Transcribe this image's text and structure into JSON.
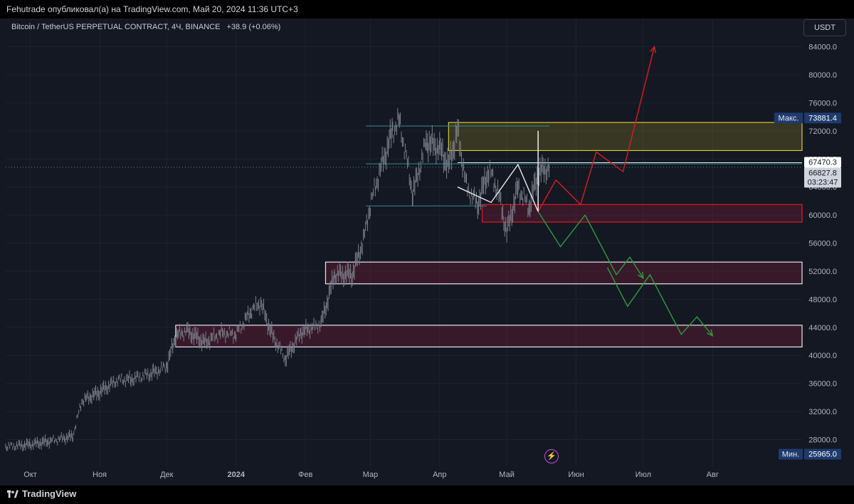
{
  "header": {
    "published": "Fehutrade опубликовал(а) на TradingView.com, Май 20, 2024 11:36 UTC+3"
  },
  "legend": {
    "symbol": "Bitcoin / TetherUS PERPETUAL CONTRACT, 4Ч, BINANCE",
    "change": "+38.9 (+0.06%)"
  },
  "currency_button": "USDT",
  "brand": {
    "name": "TradingView"
  },
  "colors": {
    "background": "#141823",
    "candles": "#7b7f8a",
    "red_path": "#e0191e",
    "green_path": "#2a9e3c",
    "yellow_zone": "#d8c72e",
    "teal_line": "#2f8f8a"
  },
  "chart_data": {
    "type": "line",
    "title": "",
    "xlabel": "",
    "ylabel": "",
    "ylim": [
      24500,
      87000
    ],
    "y_ticks": [
      28000,
      32000,
      36000,
      40000,
      44000,
      48000,
      52000,
      56000,
      60000,
      64000,
      68000,
      72000,
      76000,
      80000,
      84000
    ],
    "y_tick_labels": [
      "28000.0",
      "32000.0",
      "36000.0",
      "40000.0",
      "44000.0",
      "48000.0",
      "52000.0",
      "56000.0",
      "60000.0",
      "64000.0",
      "68000.0",
      "72000.0",
      "76000.0",
      "80000.0",
      "84000.0"
    ],
    "x_ticks": [
      "2023-10-01",
      "2023-11-01",
      "2023-12-01",
      "2024-01-01",
      "2024-02-01",
      "2024-03-01",
      "2024-04-01",
      "2024-05-01",
      "2024-06-01",
      "2024-07-01",
      "2024-08-01"
    ],
    "x_tick_labels": [
      "Окт",
      "Ноя",
      "Дек",
      "2024",
      "Фев",
      "Мар",
      "Апр",
      "Май",
      "Июн",
      "Июл",
      "Авг"
    ],
    "xlim": [
      "2023-09-20",
      "2024-09-10"
    ],
    "series": [
      {
        "values": [
          [
            "2023-09-20",
            27000
          ],
          [
            "2023-10-01",
            27300
          ],
          [
            "2023-10-10",
            27800
          ],
          [
            "2023-10-20",
            28500
          ],
          [
            "2023-10-24",
            33500
          ],
          [
            "2023-11-01",
            34800
          ],
          [
            "2023-11-09",
            36500
          ],
          [
            "2023-11-15",
            36600
          ],
          [
            "2023-11-25",
            37500
          ],
          [
            "2023-12-01",
            38500
          ],
          [
            "2023-12-05",
            42800
          ],
          [
            "2023-12-10",
            43500
          ],
          [
            "2023-12-18",
            41800
          ],
          [
            "2023-12-25",
            43200
          ],
          [
            "2024-01-01",
            43000
          ],
          [
            "2024-01-08",
            46500
          ],
          [
            "2024-01-12",
            47500
          ],
          [
            "2024-01-17",
            43000
          ],
          [
            "2024-01-23",
            39500
          ],
          [
            "2024-01-30",
            43300
          ],
          [
            "2024-02-08",
            44500
          ],
          [
            "2024-02-14",
            51500
          ],
          [
            "2024-02-22",
            51500
          ],
          [
            "2024-02-27",
            56500
          ],
          [
            "2024-03-01",
            61500
          ],
          [
            "2024-03-05",
            66000
          ],
          [
            "2024-03-11",
            72000
          ],
          [
            "2024-03-14",
            73500
          ],
          [
            "2024-03-20",
            63000
          ],
          [
            "2024-03-26",
            70500
          ],
          [
            "2024-04-01",
            69500
          ],
          [
            "2024-04-05",
            67000
          ],
          [
            "2024-04-09",
            72000
          ],
          [
            "2024-04-13",
            64000
          ],
          [
            "2024-04-18",
            61500
          ],
          [
            "2024-04-23",
            66500
          ],
          [
            "2024-04-27",
            63500
          ],
          [
            "2024-05-01",
            57500
          ],
          [
            "2024-05-06",
            64000
          ],
          [
            "2024-05-11",
            61000
          ],
          [
            "2024-05-15",
            66000
          ],
          [
            "2024-05-20",
            66827.8
          ]
        ]
      }
    ],
    "zones": [
      {
        "label": "resistance",
        "color": "#d8c72e",
        "from": "2024-04-05",
        "to": "2024-09-10",
        "low": 69200,
        "high": 73200
      },
      {
        "label": "supply-red",
        "color": "#e0191e",
        "from": "2024-04-20",
        "to": "2024-09-10",
        "low": 59000,
        "high": 61500
      },
      {
        "label": "zone-52k",
        "color": "#e8e8e8",
        "from": "2024-02-10",
        "to": "2024-09-10",
        "low": 50200,
        "high": 53300
      },
      {
        "label": "zone-43k",
        "color": "#e8e8e8",
        "from": "2023-12-05",
        "to": "2024-09-10",
        "low": 41200,
        "high": 44300
      }
    ],
    "hlines": [
      {
        "price": 72700,
        "from": "2024-02-28",
        "to": "2024-05-20",
        "color": "#2f8f8a"
      },
      {
        "price": 67300,
        "from": "2024-02-28",
        "to": "2024-09-10",
        "color": "#2f8f8a"
      },
      {
        "price": 61300,
        "from": "2024-02-28",
        "to": "2024-04-22",
        "color": "#2f8f8a"
      },
      {
        "price": 67470.3,
        "from": "2024-04-09",
        "to": "2024-09-10",
        "color": "#e8e8e8"
      },
      {
        "price": 66827.8,
        "from": "2023-09-20",
        "to": "2024-09-10",
        "color": "#2f8f8a",
        "dotted": true
      }
    ],
    "projections": [
      {
        "name": "bull",
        "color": "#e0191e",
        "points": [
          [
            "2024-05-15",
            60500
          ],
          [
            "2024-05-23",
            65000
          ],
          [
            "2024-06-03",
            61500
          ],
          [
            "2024-06-10",
            69000
          ],
          [
            "2024-06-22",
            66200
          ],
          [
            "2024-07-06",
            84000
          ]
        ]
      },
      {
        "name": "bear",
        "color": "#2a9e3c",
        "points": [
          [
            "2024-05-15",
            60500
          ],
          [
            "2024-05-25",
            55500
          ],
          [
            "2024-06-05",
            60000
          ],
          [
            "2024-06-19",
            51500
          ],
          [
            "2024-06-25",
            54000
          ],
          [
            "2024-07-01",
            51000
          ]
        ]
      },
      {
        "name": "bear2",
        "color": "#2a9e3c",
        "points": [
          [
            "2024-06-15",
            52500
          ],
          [
            "2024-06-24",
            47000
          ],
          [
            "2024-07-04",
            51500
          ],
          [
            "2024-07-18",
            43000
          ],
          [
            "2024-07-25",
            45500
          ],
          [
            "2024-08-01",
            42800
          ]
        ]
      },
      {
        "name": "zigzag",
        "color": "#e8e8e8",
        "points": [
          [
            "2024-04-09",
            64000
          ],
          [
            "2024-04-24",
            61800
          ],
          [
            "2024-05-06",
            67200
          ],
          [
            "2024-05-15",
            60500
          ],
          [
            "2024-05-15",
            72000
          ]
        ]
      }
    ],
    "price_labels": {
      "max_label": "Макс.",
      "max_value": "73881.4",
      "line_value": "67470.3",
      "last_value": "66827.8",
      "countdown": "03:23:47",
      "min_label": "Мин.",
      "min_value": "25965.0"
    }
  }
}
